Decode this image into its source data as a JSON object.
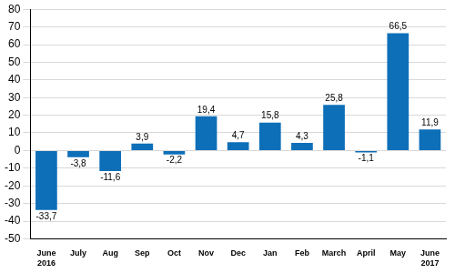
{
  "chart_data": {
    "type": "bar",
    "categories": [
      "June 2016",
      "July",
      "Aug",
      "Sep",
      "Oct",
      "Nov",
      "Dec",
      "Jan",
      "Feb",
      "March",
      "April",
      "May",
      "June 2017"
    ],
    "values": [
      -33.7,
      -3.8,
      -11.6,
      3.9,
      -2.2,
      19.4,
      4.7,
      15.8,
      4.3,
      25.8,
      -1.1,
      66.5,
      11.9
    ],
    "value_labels": [
      "-33,7",
      "-3,8",
      "-11,6",
      "3,9",
      "-2,2",
      "19,4",
      "4,7",
      "15,8",
      "4,3",
      "25,8",
      "-1,1",
      "66,5",
      "11,9"
    ],
    "data_labels": true,
    "color": "#0d6fb8",
    "ylim": [
      -50,
      80
    ],
    "yticks": [
      -50,
      -40,
      -30,
      -20,
      -10,
      0,
      10,
      20,
      30,
      40,
      50,
      60,
      70,
      80
    ],
    "grid": true
  }
}
